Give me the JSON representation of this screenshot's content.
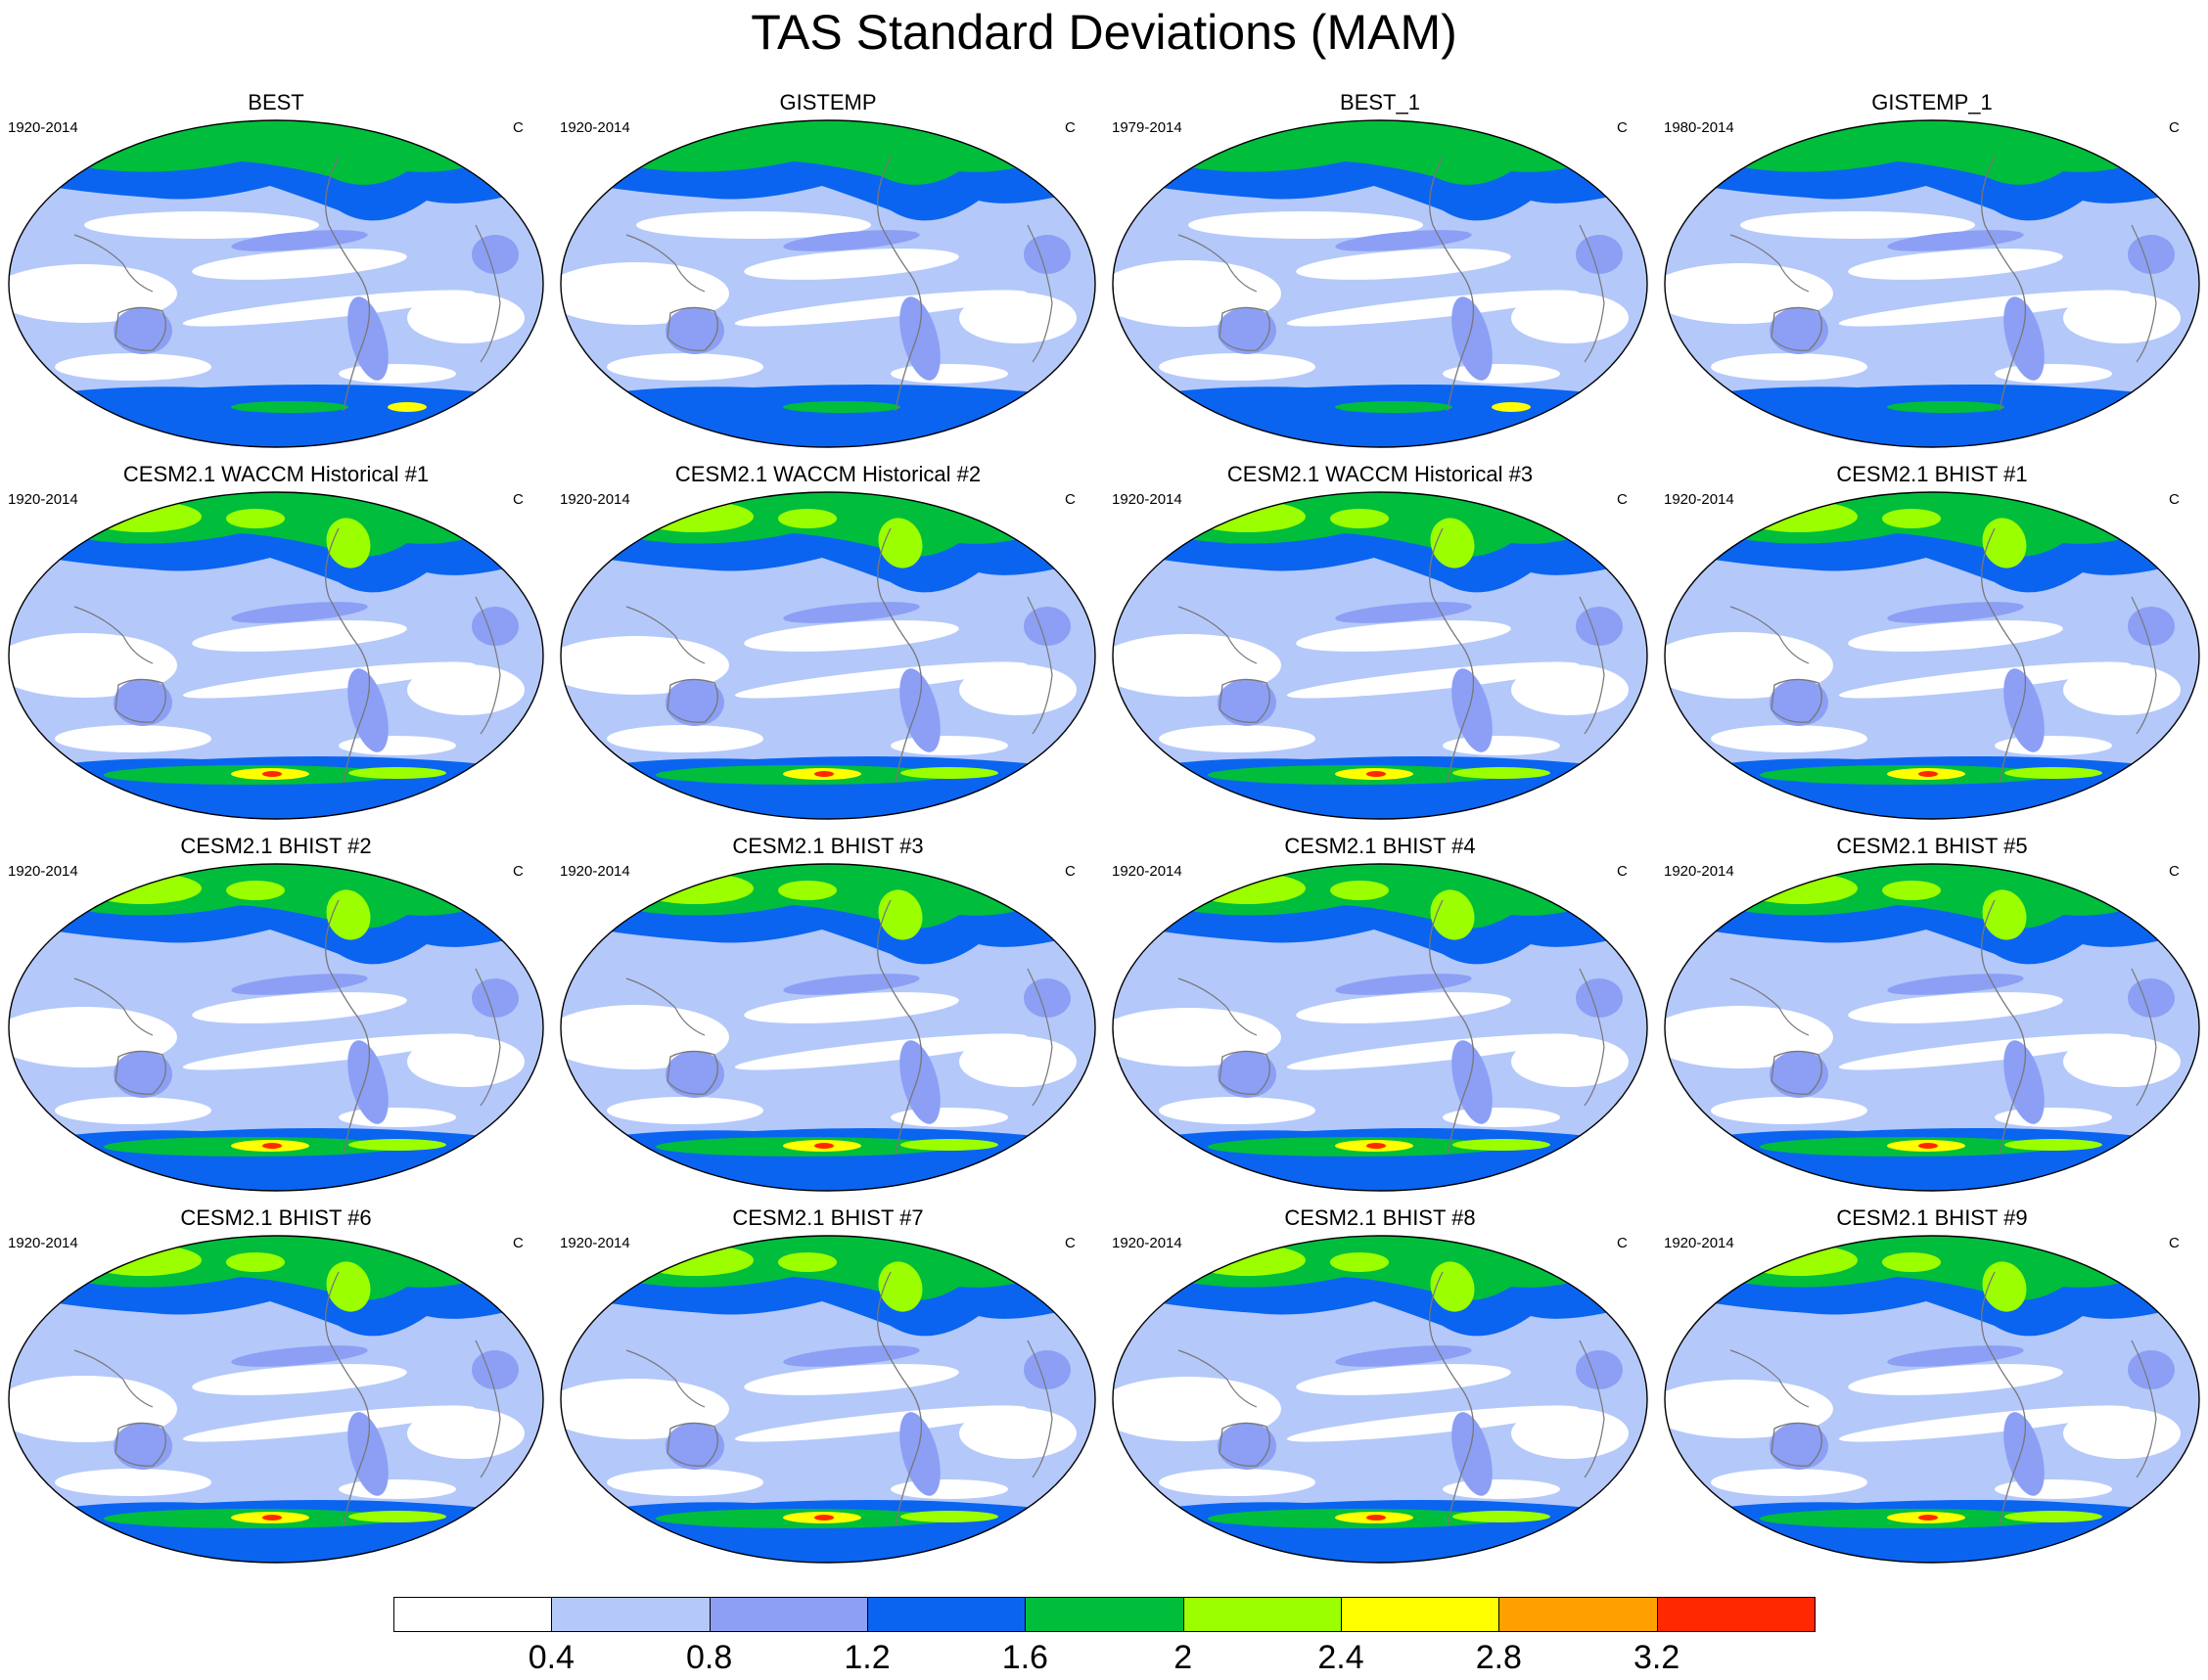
{
  "title": "TAS Standard Deviations (MAM)",
  "panels": [
    {
      "title": "BEST",
      "left": "1920-2014",
      "right": "C",
      "kind": "obs"
    },
    {
      "title": "GISTEMP",
      "left": "1920-2014",
      "right": "C",
      "kind": "obs"
    },
    {
      "title": "BEST_1",
      "left": "1979-2014",
      "right": "C",
      "kind": "obs"
    },
    {
      "title": "GISTEMP_1",
      "left": "1980-2014",
      "right": "C",
      "kind": "obs"
    },
    {
      "title": "CESM2.1 WACCM Historical #1",
      "left": "1920-2014",
      "right": "C",
      "kind": "model"
    },
    {
      "title": "CESM2.1 WACCM Historical #2",
      "left": "1920-2014",
      "right": "C",
      "kind": "model"
    },
    {
      "title": "CESM2.1 WACCM Historical #3",
      "left": "1920-2014",
      "right": "C",
      "kind": "model"
    },
    {
      "title": "CESM2.1 BHIST #1",
      "left": "1920-2014",
      "right": "C",
      "kind": "model"
    },
    {
      "title": "CESM2.1 BHIST #2",
      "left": "1920-2014",
      "right": "C",
      "kind": "model"
    },
    {
      "title": "CESM2.1 BHIST #3",
      "left": "1920-2014",
      "right": "C",
      "kind": "model"
    },
    {
      "title": "CESM2.1 BHIST #4",
      "left": "1920-2014",
      "right": "C",
      "kind": "model"
    },
    {
      "title": "CESM2.1 BHIST #5",
      "left": "1920-2014",
      "right": "C",
      "kind": "model"
    },
    {
      "title": "CESM2.1 BHIST #6",
      "left": "1920-2014",
      "right": "C",
      "kind": "model"
    },
    {
      "title": "CESM2.1 BHIST #7",
      "left": "1920-2014",
      "right": "C",
      "kind": "model"
    },
    {
      "title": "CESM2.1 BHIST #8",
      "left": "1920-2014",
      "right": "C",
      "kind": "model"
    },
    {
      "title": "CESM2.1 BHIST #9",
      "left": "1920-2014",
      "right": "C",
      "kind": "model"
    }
  ],
  "colorbar": {
    "colors": [
      "#ffffff",
      "#b4c8fa",
      "#8c9ff5",
      "#0a64f0",
      "#00be3c",
      "#9bff00",
      "#ffff00",
      "#ffa000",
      "#ff2800"
    ],
    "labels": [
      "0.4",
      "0.8",
      "1.2",
      "1.6",
      "2",
      "2.4",
      "2.8",
      "3.2"
    ]
  }
}
